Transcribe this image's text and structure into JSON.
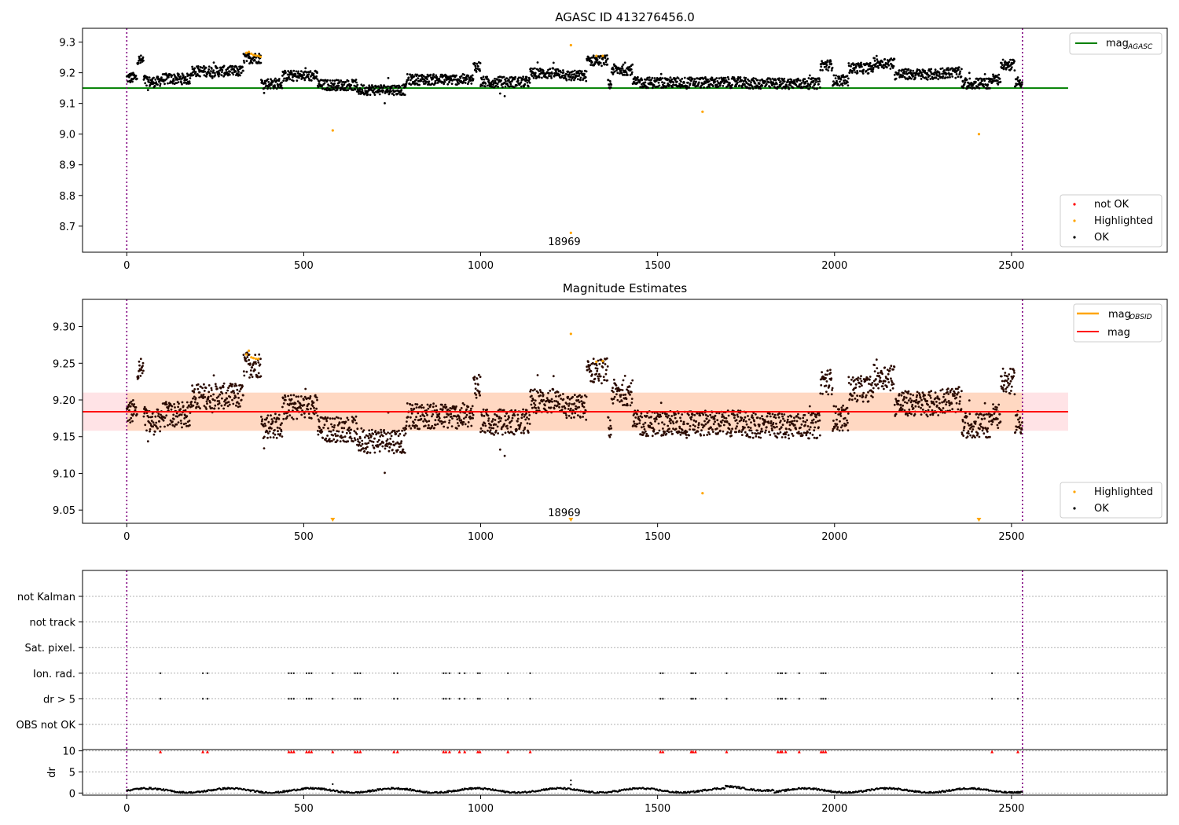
{
  "figure": {
    "panel1": {
      "title": "AGASC ID 413276456.0",
      "type": "scatter",
      "x_ticks": [
        0,
        500,
        1000,
        1500,
        2000,
        2500
      ],
      "y_ticks": [
        "9.3",
        "9.2",
        "9.1",
        "9.0",
        "8.9",
        "8.8",
        "8.7"
      ],
      "ylim": [
        8.615,
        9.345
      ],
      "xlim": [
        -125,
        2940
      ],
      "reference_lines": [
        {
          "name": "mag_AGASC",
          "value": 9.15,
          "color": "#008000",
          "x_range": [
            -125,
            2660
          ]
        }
      ],
      "vlines": [
        0,
        2531
      ],
      "annotation": {
        "text": "18969",
        "x": 1266,
        "y": 8.65
      },
      "highlighted_points": [
        {
          "x": 338,
          "y": 9.265
        },
        {
          "x": 345,
          "y": 9.268
        },
        {
          "x": 352,
          "y": 9.262
        },
        {
          "x": 358,
          "y": 9.258
        },
        {
          "x": 365,
          "y": 9.256
        },
        {
          "x": 372,
          "y": 9.255
        },
        {
          "x": 378,
          "y": 9.252
        },
        {
          "x": 582,
          "y": 9.012
        },
        {
          "x": 1255,
          "y": 9.29
        },
        {
          "x": 1255,
          "y": 8.678
        },
        {
          "x": 1327,
          "y": 9.255
        },
        {
          "x": 1345,
          "y": 9.255
        },
        {
          "x": 1627,
          "y": 9.073
        },
        {
          "x": 2408,
          "y": 9.0
        }
      ],
      "legend_top": {
        "entries": [
          "mag"
        ],
        "subscript": "AGASC"
      },
      "legend_bottom": {
        "entries": [
          "not OK",
          "Highlighted",
          "OK"
        ],
        "colors": [
          "#ff0000",
          "#ffa500",
          "#000000"
        ]
      }
    },
    "panel2": {
      "title": "Magnitude Estimates",
      "type": "scatter",
      "x_ticks": [
        0,
        500,
        1000,
        1500,
        2000,
        2500
      ],
      "y_ticks": [
        "9.30",
        "9.25",
        "9.20",
        "9.15",
        "9.10",
        "9.05"
      ],
      "ylim": [
        9.032,
        9.337
      ],
      "xlim": [
        -125,
        2940
      ],
      "mag_line": 9.184,
      "band": [
        9.158,
        9.21
      ],
      "vlines": [
        0,
        2531
      ],
      "annotation": {
        "text": "18969",
        "x": 1266,
        "y": 9.044
      },
      "highlighted_points": [
        {
          "x": 338,
          "y": 9.262
        },
        {
          "x": 345,
          "y": 9.267
        },
        {
          "x": 352,
          "y": 9.258
        },
        {
          "x": 358,
          "y": 9.257
        },
        {
          "x": 365,
          "y": 9.256
        },
        {
          "x": 372,
          "y": 9.256
        },
        {
          "x": 1255,
          "y": 9.29
        },
        {
          "x": 1327,
          "y": 9.252
        },
        {
          "x": 1345,
          "y": 9.253
        },
        {
          "x": 1627,
          "y": 9.073
        }
      ],
      "clipped_markers": [
        582,
        1255,
        2408
      ],
      "legend_top": {
        "entries": [
          "mag",
          "mag"
        ],
        "subscript": "OBSID"
      },
      "legend_bottom": {
        "entries": [
          "Highlighted",
          "OK"
        ],
        "colors": [
          "#ffa500",
          "#000000"
        ]
      }
    },
    "panel3": {
      "type": "flags",
      "x_ticks": [
        0,
        500,
        1000,
        1500,
        2000,
        2500
      ],
      "flag_labels": [
        "not Kalman",
        "not track",
        "Sat. pixel.",
        "Ion. rad.",
        "dr > 5",
        "OBS not OK"
      ],
      "flag_x": [
        95,
        215,
        228,
        458,
        465,
        472,
        508,
        515,
        522,
        582,
        645,
        652,
        660,
        755,
        765,
        895,
        902,
        912,
        940,
        955,
        992,
        998,
        1077,
        1140,
        1508,
        1515,
        1595,
        1600,
        1607,
        1695,
        1840,
        1847,
        1852,
        1862,
        1900,
        1962,
        1968,
        1975,
        2445,
        2518
      ]
    },
    "panel4": {
      "ylabel": "dr",
      "y_ticks": [
        "10",
        "5",
        "0"
      ],
      "ylim": [
        -0.5,
        10.3
      ],
      "red_marker_value": 9.8
    }
  },
  "chart_data": [
    {
      "type": "scatter",
      "title": "AGASC ID 413276456.0",
      "xlabel": "",
      "ylabel": "",
      "xlim": [
        -125,
        2940
      ],
      "ylim": [
        8.615,
        9.345
      ],
      "series": [
        {
          "name": "mag_AGASC",
          "type": "hline",
          "values": [
            9.15
          ]
        },
        {
          "name": "OK",
          "description_from_plot": "black points ~2530 samples varying 9.12-9.25"
        },
        {
          "name": "Highlighted",
          "points": [
            [
              582,
              9.012
            ],
            [
              1255,
              9.29
            ],
            [
              1255,
              8.678
            ],
            [
              1627,
              9.073
            ],
            [
              2408,
              9.0
            ]
          ]
        }
      ],
      "legend": [
        "mag_AGASC",
        "not OK",
        "Highlighted",
        "OK"
      ],
      "annotations": [
        "18969"
      ]
    },
    {
      "type": "scatter",
      "title": "Magnitude Estimates",
      "xlabel": "",
      "ylabel": "",
      "xlim": [
        -125,
        2940
      ],
      "ylim": [
        9.032,
        9.337
      ],
      "series": [
        {
          "name": "mag",
          "type": "hline",
          "values": [
            9.184
          ]
        },
        {
          "name": "mag_OBSID"
        },
        {
          "name": "Highlighted"
        },
        {
          "name": "OK"
        }
      ],
      "legend": [
        "mag_OBSID",
        "mag",
        "Highlighted",
        "OK"
      ],
      "annotations": [
        "18969"
      ]
    },
    {
      "type": "scatter",
      "title": "",
      "categories": [
        "not Kalman",
        "not track",
        "Sat. pixel.",
        "Ion. rad.",
        "dr > 5",
        "OBS not OK"
      ],
      "xlim": [
        -125,
        2940
      ]
    },
    {
      "type": "scatter",
      "title": "",
      "ylabel": "dr",
      "ylim": [
        -0.5,
        10.3
      ],
      "y_ticks": [
        0,
        5,
        10
      ]
    }
  ]
}
